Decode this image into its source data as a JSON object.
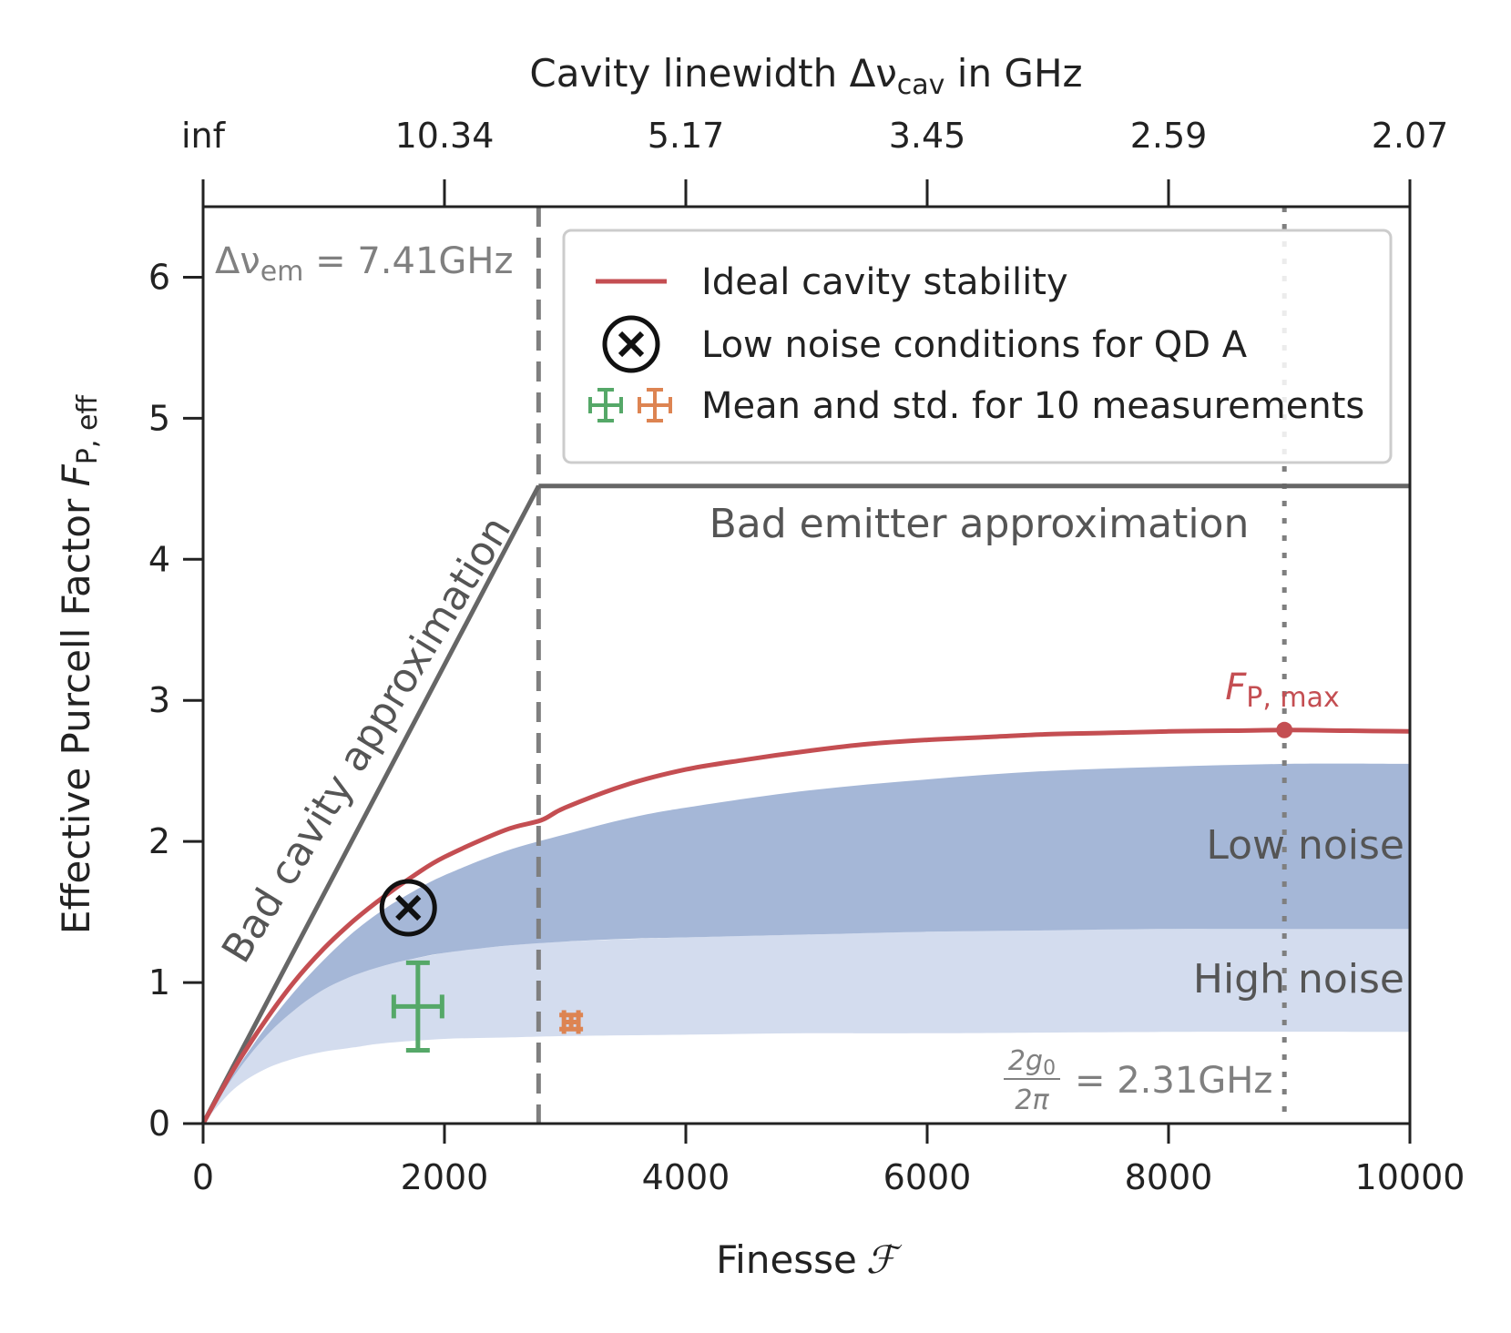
{
  "chart_data": {
    "type": "line",
    "x_axis": {
      "label": "Finesse",
      "symbol": "ℱ",
      "range": [
        0,
        10000
      ],
      "ticks": [
        0,
        2000,
        4000,
        6000,
        8000,
        10000
      ],
      "tick_labels": [
        "0",
        "2000",
        "4000",
        "6000",
        "8000",
        "10000"
      ]
    },
    "top_axis": {
      "label": "Cavity linewidth Δν",
      "label_sub": "cav",
      "label_suffix": " in GHz",
      "ticks": [
        0,
        2000,
        4000,
        6000,
        8000,
        10000
      ],
      "tick_labels": [
        "inf",
        "10.34",
        "5.17",
        "3.45",
        "2.59",
        "2.07"
      ]
    },
    "y_axis": {
      "label": "Effective Purcell Factor ",
      "symbol": "F",
      "symbol_sub": "P, eff",
      "range": [
        0,
        6.5
      ],
      "ticks": [
        0,
        1,
        2,
        3,
        4,
        5,
        6
      ],
      "tick_labels": [
        "0",
        "1",
        "2",
        "3",
        "4",
        "5",
        "6"
      ]
    },
    "ideal_curve": {
      "name": "Ideal cavity stability",
      "color": "#c44e52",
      "x": [
        0,
        250,
        500,
        750,
        1000,
        1250,
        1500,
        1750,
        2000,
        2500,
        2800,
        3000,
        3500,
        4000,
        4500,
        5000,
        5500,
        6000,
        6500,
        7000,
        7500,
        8000,
        8500,
        9000,
        9500,
        10000
      ],
      "y": [
        0,
        0.38,
        0.71,
        1.0,
        1.24,
        1.44,
        1.61,
        1.76,
        1.89,
        2.08,
        2.15,
        2.24,
        2.4,
        2.51,
        2.58,
        2.64,
        2.69,
        2.72,
        2.74,
        2.76,
        2.77,
        2.78,
        2.785,
        2.79,
        2.785,
        2.78
      ]
    },
    "low_noise_band": {
      "name": "Low noise",
      "color": "#a5b7d7",
      "x": [
        0,
        250,
        500,
        750,
        1000,
        1250,
        1500,
        1750,
        2000,
        2500,
        3000,
        3500,
        4000,
        5000,
        6000,
        7000,
        8000,
        9000,
        10000
      ],
      "upper": [
        0,
        0.35,
        0.66,
        0.93,
        1.16,
        1.36,
        1.52,
        1.65,
        1.76,
        1.93,
        2.05,
        2.16,
        2.24,
        2.36,
        2.44,
        2.5,
        2.53,
        2.55,
        2.55
      ],
      "lower": [
        0,
        0.33,
        0.6,
        0.8,
        0.95,
        1.05,
        1.12,
        1.17,
        1.21,
        1.26,
        1.29,
        1.31,
        1.32,
        1.34,
        1.36,
        1.37,
        1.38,
        1.38,
        1.38
      ]
    },
    "high_noise_band": {
      "name": "High noise",
      "color": "#d3dcee",
      "x": [
        0,
        250,
        500,
        750,
        1000,
        1250,
        1500,
        2000,
        2500,
        3000,
        4000,
        5000,
        6000,
        8000,
        10000
      ],
      "lower": [
        0,
        0.24,
        0.38,
        0.46,
        0.51,
        0.54,
        0.57,
        0.6,
        0.61,
        0.62,
        0.63,
        0.64,
        0.64,
        0.65,
        0.65
      ]
    },
    "bad_cavity_approx": {
      "label": "Bad cavity approximation",
      "x": [
        0,
        2780
      ],
      "y": [
        0,
        4.52
      ],
      "color": "#666666"
    },
    "bad_emitter_approx": {
      "label": "Bad emitter approximation",
      "x": [
        2780,
        10000
      ],
      "y": [
        4.52,
        4.52
      ],
      "color": "#666666"
    },
    "emitter_linewidth_line": {
      "x": 2780,
      "label": "Δν",
      "label_sub": "em",
      "label_value": " = 7.41GHz",
      "color": "#7f7f7f"
    },
    "coupling_line": {
      "x": 8960,
      "label_num": "2g",
      "label_num_sub": "0",
      "label_den": "2π",
      "label_value": "= 2.31GHz",
      "color": "#7f7f7f"
    },
    "fp_max": {
      "label": "F",
      "label_sub": "P, max",
      "x": 8960,
      "y": 2.79,
      "color": "#c44e52"
    },
    "low_noise_point": {
      "name": "Low noise conditions for QD A",
      "x": 1700,
      "y": 1.53
    },
    "measurements": {
      "name": "Mean and std. for 10 measurements",
      "points": [
        {
          "x": 1780,
          "y": 0.83,
          "xerr": 200,
          "yerr": 0.31,
          "color": "#55a868"
        },
        {
          "x": 3050,
          "y": 0.72,
          "xerr": 60,
          "yerr": 0.05,
          "color": "#dd8452"
        }
      ]
    },
    "legend": {
      "position": "upper-right",
      "entries": [
        "Ideal cavity stability",
        "Low noise conditions for QD A",
        "Mean and std. for 10 measurements"
      ]
    },
    "band_labels": {
      "low": "Low noise",
      "high": "High noise"
    }
  }
}
